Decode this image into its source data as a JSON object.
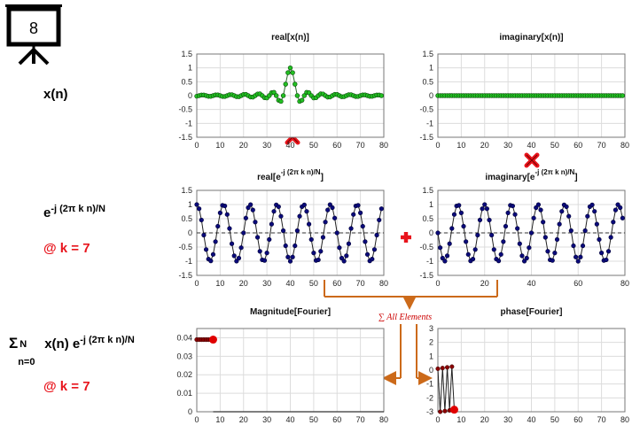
{
  "slide_number": "8",
  "left_labels": {
    "xn": "x(n)",
    "exp_base": "e",
    "exp_sup": "-j (2π k n)/N",
    "k_label_1": "@ k = 7",
    "sum_sym": "Σ",
    "sum_sub": "n=0",
    "sum_sup": "N",
    "sum_xn": "x(n) e",
    "sum_exp_sup": "-j (2π k n)/N",
    "k_label_2": "@ k = 7"
  },
  "sum_note": "∑ All Elements",
  "colors": {
    "green_marker": "#22c022",
    "blue_marker": "#0a0a7a",
    "red_marker": "#e00000",
    "dark_red_marker": "#8b0000",
    "op_red": "#e8141c",
    "arrow": "#cc6a1a",
    "grid": "#dcdcdc"
  },
  "chart_data": [
    {
      "id": "real-x",
      "type": "line",
      "title": "real[x(n)]",
      "xlim": [
        0,
        80
      ],
      "ylim": [
        -1.5,
        1.5
      ],
      "xticks": [
        "0",
        "10",
        "20",
        "30",
        "40",
        "50",
        "60",
        "70",
        "80"
      ],
      "yticks": [
        "1.5",
        "1",
        "0.5",
        "0",
        "-0.5",
        "-1",
        "-1.5"
      ],
      "ytick_values": [
        1.5,
        1,
        0.5,
        0,
        -0.5,
        -1,
        -1.5
      ],
      "series": [
        {
          "kind": "sinc",
          "n_points": 80,
          "center": 40,
          "amplitude": 1.0,
          "width": 3.0
        }
      ]
    },
    {
      "id": "imag-x",
      "type": "line",
      "title": "imaginary[x(n)]",
      "xlim": [
        0,
        80
      ],
      "ylim": [
        -1.5,
        1.5
      ],
      "xticks": [
        "0",
        "10",
        "20",
        "30",
        "40",
        "50",
        "60",
        "70",
        "80"
      ],
      "yticks": [
        "1.5",
        "1",
        "0.5",
        "0",
        "-0.5",
        "-1",
        "-1.5"
      ],
      "ytick_values": [
        1.5,
        1,
        0.5,
        0,
        -0.5,
        -1,
        -1.5
      ],
      "series": [
        {
          "kind": "zero",
          "n_points": 80
        }
      ]
    },
    {
      "id": "real-e",
      "type": "line",
      "title_base": "real[e",
      "title_sup": "-j (2π k n)/N",
      "title_end": "]",
      "xlim": [
        0,
        80
      ],
      "ylim": [
        -1.5,
        1.5
      ],
      "xticks": [
        "0",
        "10",
        "20",
        "30",
        "40",
        "50",
        "60",
        "70",
        "80"
      ],
      "yticks": [
        "1.5",
        "1",
        "0.5",
        "0",
        "-0.5",
        "-1",
        "-1.5"
      ],
      "ytick_values": [
        1.5,
        1,
        0.5,
        0,
        -0.5,
        -1,
        -1.5
      ],
      "series": [
        {
          "kind": "cos",
          "n_points": 80,
          "k": 7,
          "N": 80
        }
      ]
    },
    {
      "id": "imag-e",
      "type": "line",
      "title_base": "imaginary[e",
      "title_sup": "-j (2π k n)/N",
      "title_end": "]",
      "xlim": [
        0,
        80
      ],
      "ylim": [
        -1.5,
        1.5
      ],
      "xticks": [
        "0",
        "20",
        "40",
        "60",
        "80"
      ],
      "yticks": [
        "1.5",
        "1",
        "0.5",
        "0",
        "-0.5",
        "-1",
        "-1.5"
      ],
      "ytick_values": [
        1.5,
        1,
        0.5,
        0,
        -0.5,
        -1,
        -1.5
      ],
      "series": [
        {
          "kind": "negsin",
          "n_points": 80,
          "k": 7,
          "N": 80
        }
      ]
    },
    {
      "id": "mag",
      "type": "scatter",
      "title": "Magnitude[Fourier]",
      "xlim": [
        0,
        80
      ],
      "ylim": [
        0,
        0.045
      ],
      "xticks": [
        "0",
        "10",
        "20",
        "30",
        "40",
        "50",
        "60",
        "70",
        "80"
      ],
      "yticks": [
        "0.04",
        "0.03",
        "0.02",
        "0.01",
        "0"
      ],
      "ytick_values": [
        0.04,
        0.03,
        0.02,
        0.01,
        0
      ],
      "series": [
        {
          "name": "",
          "x": [
            0,
            1,
            2,
            3,
            4,
            5,
            6
          ],
          "y": [
            0.039,
            0.039,
            0.039,
            0.039,
            0.039,
            0.039,
            0.039
          ]
        },
        {
          "name": "",
          "x": [
            7
          ],
          "y": [
            0.039
          ]
        },
        {
          "name": "",
          "x_line": [
            7,
            80
          ],
          "y_line": [
            0,
            0
          ]
        }
      ]
    },
    {
      "id": "phase",
      "type": "line",
      "title": "phase[Fourier]",
      "xlim": [
        0,
        80
      ],
      "ylim": [
        -3,
        3
      ],
      "xticks": [
        "0",
        "10",
        "20",
        "30",
        "40",
        "50",
        "60",
        "70",
        "80"
      ],
      "yticks": [
        "3",
        "2",
        "1",
        "0",
        "-1",
        "-2",
        "-3"
      ],
      "ytick_values": [
        3,
        2,
        1,
        0,
        -1,
        -2,
        -3
      ],
      "series": [
        {
          "name": "",
          "x": [
            0,
            1,
            2,
            3,
            4,
            5,
            6,
            7
          ],
          "y": [
            0.1,
            -3.0,
            0.15,
            -2.95,
            0.2,
            -2.9,
            0.25,
            -2.85
          ]
        },
        {
          "name": "",
          "x": [
            7
          ],
          "y": [
            -2.85
          ]
        }
      ]
    }
  ]
}
